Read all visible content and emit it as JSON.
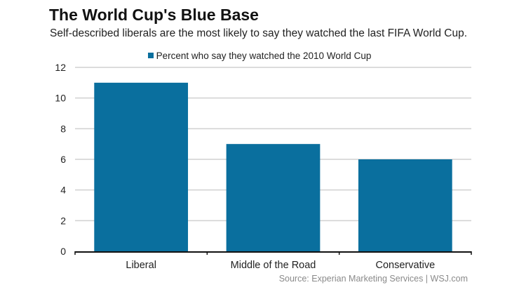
{
  "chart_data": {
    "type": "bar",
    "title": "The World Cup's Blue Base",
    "subtitle": "Self-described liberals are the most likely to say they watched the last FIFA World Cup.",
    "categories": [
      "Liberal",
      "Middle of the Road",
      "Conservative"
    ],
    "series": [
      {
        "name": "Percent who say they watched the 2010 World Cup",
        "values": [
          11,
          7,
          6
        ],
        "color": "#0a6f9e"
      }
    ],
    "xlabel": "",
    "ylabel": "",
    "ylim": [
      0,
      12
    ],
    "yticks": [
      0,
      2,
      4,
      6,
      8,
      10,
      12
    ],
    "grid": true,
    "legend_position": "top-center",
    "source": "Source: Experian Marketing Services  |  WSJ.com"
  }
}
